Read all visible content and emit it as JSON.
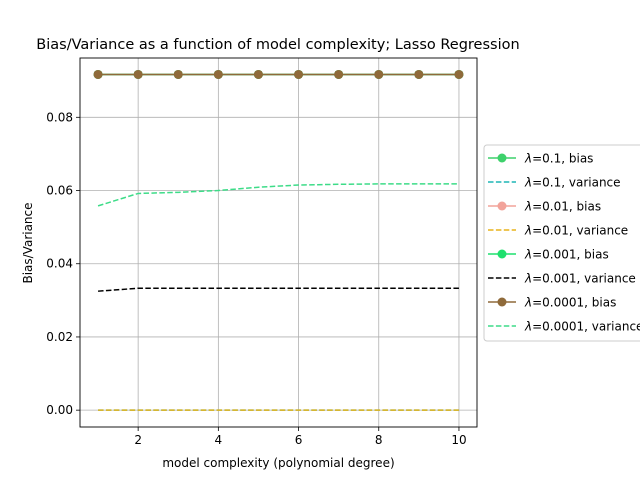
{
  "chart_data": {
    "type": "line",
    "title": "Bias/Variance as a function of model complexity; Lasso Regression",
    "xlabel": "model complexity (polynomial degree)",
    "ylabel": "Bias/Variance",
    "x": [
      1,
      2,
      3,
      4,
      5,
      6,
      7,
      8,
      9,
      10
    ],
    "xlim": [
      0.55,
      10.45
    ],
    "ylim": [
      -0.0046,
      0.0962
    ],
    "xticks": [
      2,
      4,
      6,
      8,
      10
    ],
    "xtick_labels": [
      "2",
      "4",
      "6",
      "8",
      "10"
    ],
    "yticks": [
      0.0,
      0.02,
      0.04,
      0.06,
      0.08
    ],
    "ytick_labels": [
      "0.00",
      "0.02",
      "0.04",
      "0.06",
      "0.08"
    ],
    "grid": true,
    "legend_position": "center-right, outside plot",
    "series": [
      {
        "name": "λ=0.1, bias",
        "lambda": "0.1",
        "suffix": ", bias",
        "color": "#3dd16b",
        "style": "solid",
        "marker": "circle",
        "values": [
          0.0917,
          0.0917,
          0.0917,
          0.0917,
          0.0917,
          0.0917,
          0.0917,
          0.0917,
          0.0917,
          0.0917
        ]
      },
      {
        "name": "λ=0.1, variance",
        "lambda": "0.1",
        "suffix": ", variance",
        "color": "#1fb5b5",
        "style": "dashed",
        "marker": "none",
        "values": [
          0.0,
          0.0,
          0.0,
          0.0,
          0.0,
          0.0,
          0.0,
          0.0,
          0.0,
          0.0
        ]
      },
      {
        "name": "λ=0.01, bias",
        "lambda": "0.01",
        "suffix": ", bias",
        "color": "#f2a39a",
        "style": "solid",
        "marker": "circle",
        "values": [
          0.0917,
          0.0917,
          0.0917,
          0.0917,
          0.0917,
          0.0917,
          0.0917,
          0.0917,
          0.0917,
          0.0917
        ]
      },
      {
        "name": "λ=0.01, variance",
        "lambda": "0.01",
        "suffix": ", variance",
        "color": "#e8b41c",
        "style": "dashed",
        "marker": "none",
        "values": [
          0.0,
          0.0,
          0.0,
          0.0,
          0.0,
          0.0,
          0.0,
          0.0,
          0.0,
          0.0
        ]
      },
      {
        "name": "λ=0.001, bias",
        "lambda": "0.001",
        "suffix": ", bias",
        "color": "#1fe06e",
        "style": "solid",
        "marker": "circle",
        "values": [
          0.0917,
          0.0917,
          0.0917,
          0.0917,
          0.0917,
          0.0917,
          0.0917,
          0.0917,
          0.0917,
          0.0917
        ]
      },
      {
        "name": "λ=0.001, variance",
        "lambda": "0.001",
        "suffix": ", variance",
        "color": "#000000",
        "style": "dashed",
        "marker": "none",
        "values": [
          0.0325,
          0.0333,
          0.0333,
          0.0333,
          0.0333,
          0.0333,
          0.0333,
          0.0333,
          0.0333,
          0.0333
        ]
      },
      {
        "name": "λ=0.0001, bias",
        "lambda": "0.0001",
        "suffix": ", bias",
        "color": "#8f6a3a",
        "style": "solid",
        "marker": "circle",
        "values": [
          0.0917,
          0.0917,
          0.0917,
          0.0917,
          0.0917,
          0.0917,
          0.0917,
          0.0917,
          0.0917,
          0.0917
        ]
      },
      {
        "name": "λ=0.0001, variance",
        "lambda": "0.0001",
        "suffix": ", variance",
        "color": "#3ddc88",
        "style": "dashed",
        "marker": "none",
        "values": [
          0.0558,
          0.0592,
          0.0595,
          0.06,
          0.0609,
          0.0615,
          0.0617,
          0.0618,
          0.0618,
          0.0618
        ]
      }
    ]
  }
}
